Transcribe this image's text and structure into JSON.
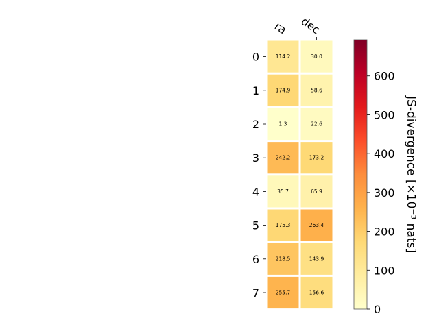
{
  "chart_data": {
    "type": "heatmap",
    "columns": [
      "ra",
      "dec"
    ],
    "rows": [
      "0",
      "1",
      "2",
      "3",
      "4",
      "5",
      "6",
      "7"
    ],
    "values": [
      [
        114.2,
        30.0
      ],
      [
        174.9,
        58.6
      ],
      [
        1.3,
        22.6
      ],
      [
        242.2,
        173.2
      ],
      [
        35.7,
        65.9
      ],
      [
        175.3,
        263.4
      ],
      [
        218.5,
        143.9
      ],
      [
        255.7,
        156.6
      ]
    ],
    "value_labels": [
      [
        "114.2",
        "30.0"
      ],
      [
        "174.9",
        "58.6"
      ],
      [
        "1.3",
        "22.6"
      ],
      [
        "242.2",
        "173.2"
      ],
      [
        "35.7",
        "65.9"
      ],
      [
        "175.3",
        "263.4"
      ],
      [
        "218.5",
        "143.9"
      ],
      [
        "255.7",
        "156.6"
      ]
    ],
    "colorbar": {
      "label": "JS-divergence [×10⁻³ nats]",
      "range": [
        0,
        693
      ],
      "ticks": [
        0,
        100,
        200,
        300,
        400,
        500,
        600
      ],
      "colormap": "YlOrRd"
    },
    "grid": false
  }
}
